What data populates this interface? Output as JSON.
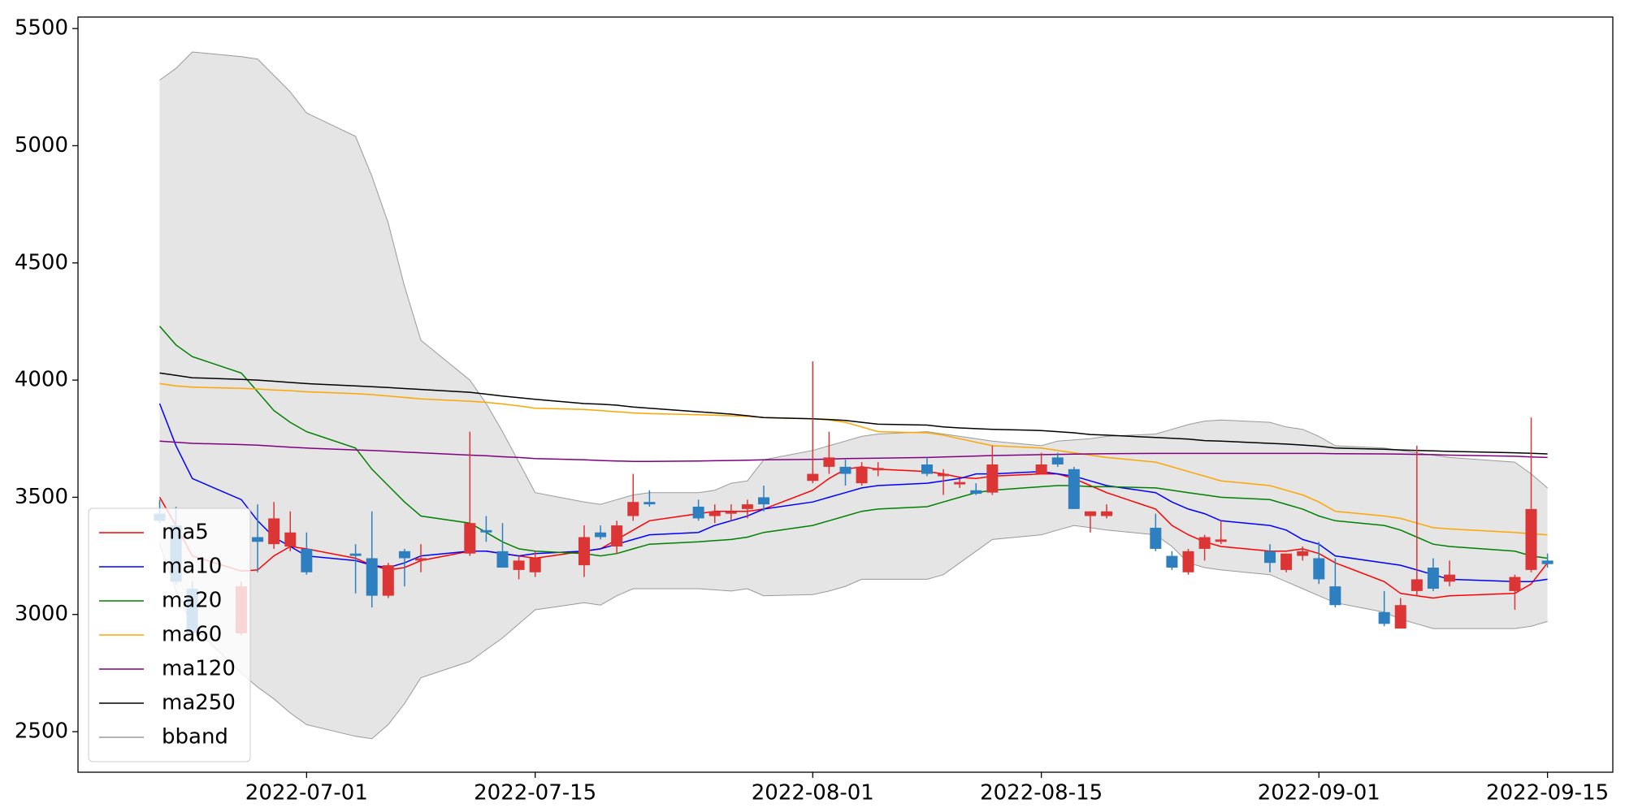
{
  "chart_data": {
    "type": "candlestick",
    "x": [
      "2022-06-22",
      "2022-06-23",
      "2022-06-24",
      "2022-06-27",
      "2022-06-28",
      "2022-06-29",
      "2022-06-30",
      "2022-07-01",
      "2022-07-04",
      "2022-07-05",
      "2022-07-06",
      "2022-07-07",
      "2022-07-08",
      "2022-07-11",
      "2022-07-12",
      "2022-07-13",
      "2022-07-14",
      "2022-07-15",
      "2022-07-18",
      "2022-07-19",
      "2022-07-20",
      "2022-07-21",
      "2022-07-22",
      "2022-07-25",
      "2022-07-26",
      "2022-07-27",
      "2022-07-28",
      "2022-07-29",
      "2022-08-01",
      "2022-08-02",
      "2022-08-03",
      "2022-08-04",
      "2022-08-05",
      "2022-08-08",
      "2022-08-09",
      "2022-08-10",
      "2022-08-11",
      "2022-08-12",
      "2022-08-15",
      "2022-08-16",
      "2022-08-17",
      "2022-08-18",
      "2022-08-19",
      "2022-08-22",
      "2022-08-23",
      "2022-08-24",
      "2022-08-25",
      "2022-08-26",
      "2022-08-29",
      "2022-08-30",
      "2022-08-31",
      "2022-09-01",
      "2022-09-02",
      "2022-09-05",
      "2022-09-06",
      "2022-09-07",
      "2022-09-08",
      "2022-09-09",
      "2022-09-13",
      "2022-09-14",
      "2022-09-15"
    ],
    "open": [
      3430,
      3380,
      3110,
      2920,
      3330,
      3300,
      3290,
      3280,
      3260,
      3240,
      3080,
      3270,
      3230,
      3260,
      3360,
      3270,
      3190,
      3180,
      3210,
      3350,
      3290,
      3420,
      3480,
      3460,
      3420,
      3430,
      3450,
      3500,
      3570,
      3630,
      3630,
      3560,
      3615,
      3640,
      3590,
      3555,
      3530,
      3520,
      3600,
      3670,
      3620,
      3420,
      3420,
      3370,
      3250,
      3180,
      3280,
      3310,
      3270,
      3190,
      3250,
      3240,
      3120,
      3010,
      2940,
      3100,
      3200,
      3140,
      3100,
      3190,
      3230
    ],
    "high": [
      3490,
      3460,
      3140,
      3140,
      3470,
      3480,
      3440,
      3350,
      3300,
      3440,
      3220,
      3280,
      3300,
      3780,
      3420,
      3390,
      3250,
      3270,
      3380,
      3380,
      3400,
      3600,
      3530,
      3490,
      3470,
      3470,
      3490,
      3550,
      4080,
      3780,
      3660,
      3650,
      3650,
      3670,
      3620,
      3580,
      3560,
      3720,
      3690,
      3690,
      3630,
      3440,
      3470,
      3430,
      3270,
      3280,
      3340,
      3400,
      3300,
      3260,
      3290,
      3310,
      3240,
      3100,
      3070,
      3720,
      3240,
      3230,
      3170,
      3840,
      3260
    ],
    "low": [
      3390,
      3130,
      2900,
      2910,
      3180,
      3280,
      3270,
      3170,
      3090,
      3030,
      3070,
      3120,
      3180,
      3250,
      3310,
      3200,
      3150,
      3160,
      3160,
      3320,
      3260,
      3400,
      3460,
      3400,
      3390,
      3400,
      3410,
      3440,
      3560,
      3600,
      3550,
      3550,
      3590,
      3590,
      3510,
      3540,
      3510,
      3510,
      3600,
      3630,
      3450,
      3350,
      3410,
      3270,
      3190,
      3170,
      3230,
      3300,
      3180,
      3180,
      3230,
      3130,
      3030,
      2950,
      2940,
      3080,
      3100,
      3120,
      3020,
      3180,
      3200
    ],
    "close": [
      3400,
      3140,
      2920,
      3120,
      3310,
      3410,
      3350,
      3180,
      3250,
      3080,
      3210,
      3240,
      3240,
      3390,
      3350,
      3200,
      3230,
      3240,
      3330,
      3330,
      3380,
      3480,
      3470,
      3410,
      3440,
      3440,
      3470,
      3470,
      3600,
      3670,
      3600,
      3630,
      3625,
      3600,
      3600,
      3565,
      3515,
      3640,
      3640,
      3640,
      3450,
      3440,
      3440,
      3280,
      3200,
      3270,
      3330,
      3320,
      3220,
      3260,
      3270,
      3150,
      3040,
      2960,
      3040,
      3150,
      3110,
      3170,
      3160,
      3450,
      3215
    ],
    "up_color": "#dc3535",
    "down_color": "#2e7fbf",
    "series": [
      {
        "name": "ma5",
        "color": "#ff0000",
        "values": [
          3500,
          3380,
          3250,
          3185,
          3190,
          3250,
          3290,
          3280,
          3240,
          3210,
          3190,
          3200,
          3230,
          3270,
          3270,
          3260,
          3250,
          3240,
          3270,
          3280,
          3320,
          3360,
          3400,
          3430,
          3440,
          3440,
          3440,
          3450,
          3530,
          3580,
          3620,
          3630,
          3620,
          3610,
          3600,
          3585,
          3580,
          3590,
          3600,
          3600,
          3580,
          3550,
          3520,
          3450,
          3380,
          3340,
          3310,
          3290,
          3270,
          3270,
          3280,
          3260,
          3220,
          3140,
          3090,
          3080,
          3070,
          3080,
          3090,
          3130,
          3220
        ]
      },
      {
        "name": "ma10",
        "color": "#0000ff",
        "values": [
          3900,
          3720,
          3580,
          3490,
          3400,
          3330,
          3290,
          3250,
          3230,
          3210,
          3200,
          3220,
          3250,
          3270,
          3270,
          3260,
          3250,
          3260,
          3270,
          3280,
          3300,
          3320,
          3340,
          3350,
          3380,
          3400,
          3420,
          3450,
          3480,
          3500,
          3520,
          3540,
          3550,
          3560,
          3570,
          3580,
          3600,
          3600,
          3610,
          3600,
          3590,
          3570,
          3550,
          3520,
          3480,
          3450,
          3430,
          3400,
          3380,
          3360,
          3320,
          3300,
          3250,
          3220,
          3210,
          3190,
          3170,
          3150,
          3140,
          3140,
          3150
        ]
      },
      {
        "name": "ma20",
        "color": "#008000",
        "values": [
          4230,
          4150,
          4100,
          4030,
          3950,
          3870,
          3820,
          3780,
          3710,
          3620,
          3550,
          3480,
          3420,
          3390,
          3350,
          3310,
          3280,
          3270,
          3260,
          3250,
          3260,
          3280,
          3300,
          3310,
          3315,
          3320,
          3330,
          3350,
          3380,
          3400,
          3420,
          3440,
          3450,
          3460,
          3480,
          3500,
          3520,
          3530,
          3545,
          3550,
          3550,
          3545,
          3545,
          3540,
          3530,
          3520,
          3510,
          3500,
          3490,
          3470,
          3450,
          3420,
          3400,
          3380,
          3360,
          3330,
          3300,
          3290,
          3270,
          3250,
          3240
        ]
      },
      {
        "name": "ma60",
        "color": "#ffa500",
        "values": [
          3985,
          3975,
          3970,
          3965,
          3962,
          3958,
          3955,
          3950,
          3942,
          3938,
          3932,
          3926,
          3920,
          3910,
          3905,
          3898,
          3890,
          3880,
          3875,
          3870,
          3865,
          3860,
          3857,
          3852,
          3850,
          3848,
          3845,
          3840,
          3835,
          3830,
          3820,
          3800,
          3780,
          3775,
          3765,
          3750,
          3735,
          3720,
          3710,
          3700,
          3690,
          3680,
          3670,
          3650,
          3630,
          3610,
          3590,
          3570,
          3550,
          3530,
          3510,
          3480,
          3440,
          3420,
          3410,
          3390,
          3370,
          3365,
          3350,
          3345,
          3340
        ]
      },
      {
        "name": "ma120",
        "color": "#800080",
        "values": [
          3740,
          3735,
          3730,
          3725,
          3722,
          3718,
          3714,
          3710,
          3702,
          3700,
          3697,
          3693,
          3690,
          3680,
          3677,
          3673,
          3670,
          3665,
          3660,
          3657,
          3655,
          3653,
          3653,
          3655,
          3656,
          3657,
          3658,
          3660,
          3662,
          3663,
          3665,
          3666,
          3667,
          3670,
          3672,
          3674,
          3676,
          3678,
          3682,
          3683,
          3684,
          3685,
          3686,
          3687,
          3687,
          3687,
          3687,
          3687,
          3687,
          3687,
          3687,
          3687,
          3686,
          3685,
          3684,
          3683,
          3682,
          3680,
          3675,
          3672,
          3670
        ]
      },
      {
        "name": "ma250",
        "color": "#000000",
        "values": [
          4030,
          4020,
          4010,
          4003,
          4000,
          3995,
          3990,
          3985,
          3975,
          3972,
          3968,
          3964,
          3960,
          3948,
          3940,
          3932,
          3925,
          3918,
          3900,
          3897,
          3893,
          3885,
          3880,
          3865,
          3860,
          3855,
          3848,
          3840,
          3835,
          3832,
          3828,
          3820,
          3812,
          3808,
          3800,
          3796,
          3793,
          3790,
          3785,
          3780,
          3775,
          3768,
          3765,
          3755,
          3752,
          3748,
          3742,
          3740,
          3730,
          3727,
          3723,
          3718,
          3710,
          3705,
          3702,
          3700,
          3698,
          3696,
          3690,
          3688,
          3685
        ]
      }
    ],
    "band": {
      "name": "bband",
      "color": "#e5e5e5",
      "edge_color": "#999999",
      "upper": [
        5280,
        5330,
        5400,
        5380,
        5370,
        5300,
        5230,
        5140,
        5040,
        4870,
        4670,
        4400,
        4170,
        4000,
        3900,
        3780,
        3650,
        3520,
        3480,
        3470,
        3490,
        3510,
        3520,
        3520,
        3530,
        3560,
        3570,
        3660,
        3700,
        3720,
        3740,
        3760,
        3770,
        3780,
        3770,
        3760,
        3750,
        3740,
        3720,
        3740,
        3745,
        3750,
        3760,
        3770,
        3790,
        3810,
        3825,
        3830,
        3820,
        3800,
        3790,
        3760,
        3720,
        3710,
        3700,
        3690,
        3680,
        3670,
        3650,
        3600,
        3540
      ],
      "lower": [
        3300,
        3100,
        2950,
        2750,
        2690,
        2640,
        2580,
        2530,
        2480,
        2470,
        2530,
        2620,
        2730,
        2800,
        2850,
        2900,
        2960,
        3020,
        3050,
        3040,
        3080,
        3110,
        3110,
        3110,
        3105,
        3100,
        3110,
        3080,
        3085,
        3100,
        3120,
        3150,
        3150,
        3150,
        3170,
        3220,
        3270,
        3320,
        3340,
        3360,
        3380,
        3370,
        3360,
        3340,
        3290,
        3220,
        3200,
        3190,
        3170,
        3140,
        3110,
        3080,
        3050,
        3010,
        2980,
        2960,
        2940,
        2940,
        2940,
        2950,
        2970
      ]
    },
    "xlim": [
      "2022-06-17",
      "2022-09-19"
    ],
    "xticks": [
      "2022-07-01",
      "2022-07-15",
      "2022-08-01",
      "2022-08-15",
      "2022-09-01",
      "2022-09-15"
    ],
    "ylim": [
      2327,
      5549
    ],
    "yticks": [
      2500,
      3000,
      3500,
      4000,
      4500,
      5000,
      5500
    ],
    "legend": "lower left"
  }
}
